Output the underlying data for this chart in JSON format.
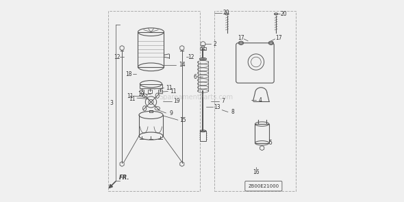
{
  "bg_color": "#f0f0f0",
  "line_color": "#555555",
  "text_color": "#333333",
  "border_color": "#aaaaaa",
  "watermark": "SpareamentParts.com",
  "diagram_code": "Z600E21000"
}
